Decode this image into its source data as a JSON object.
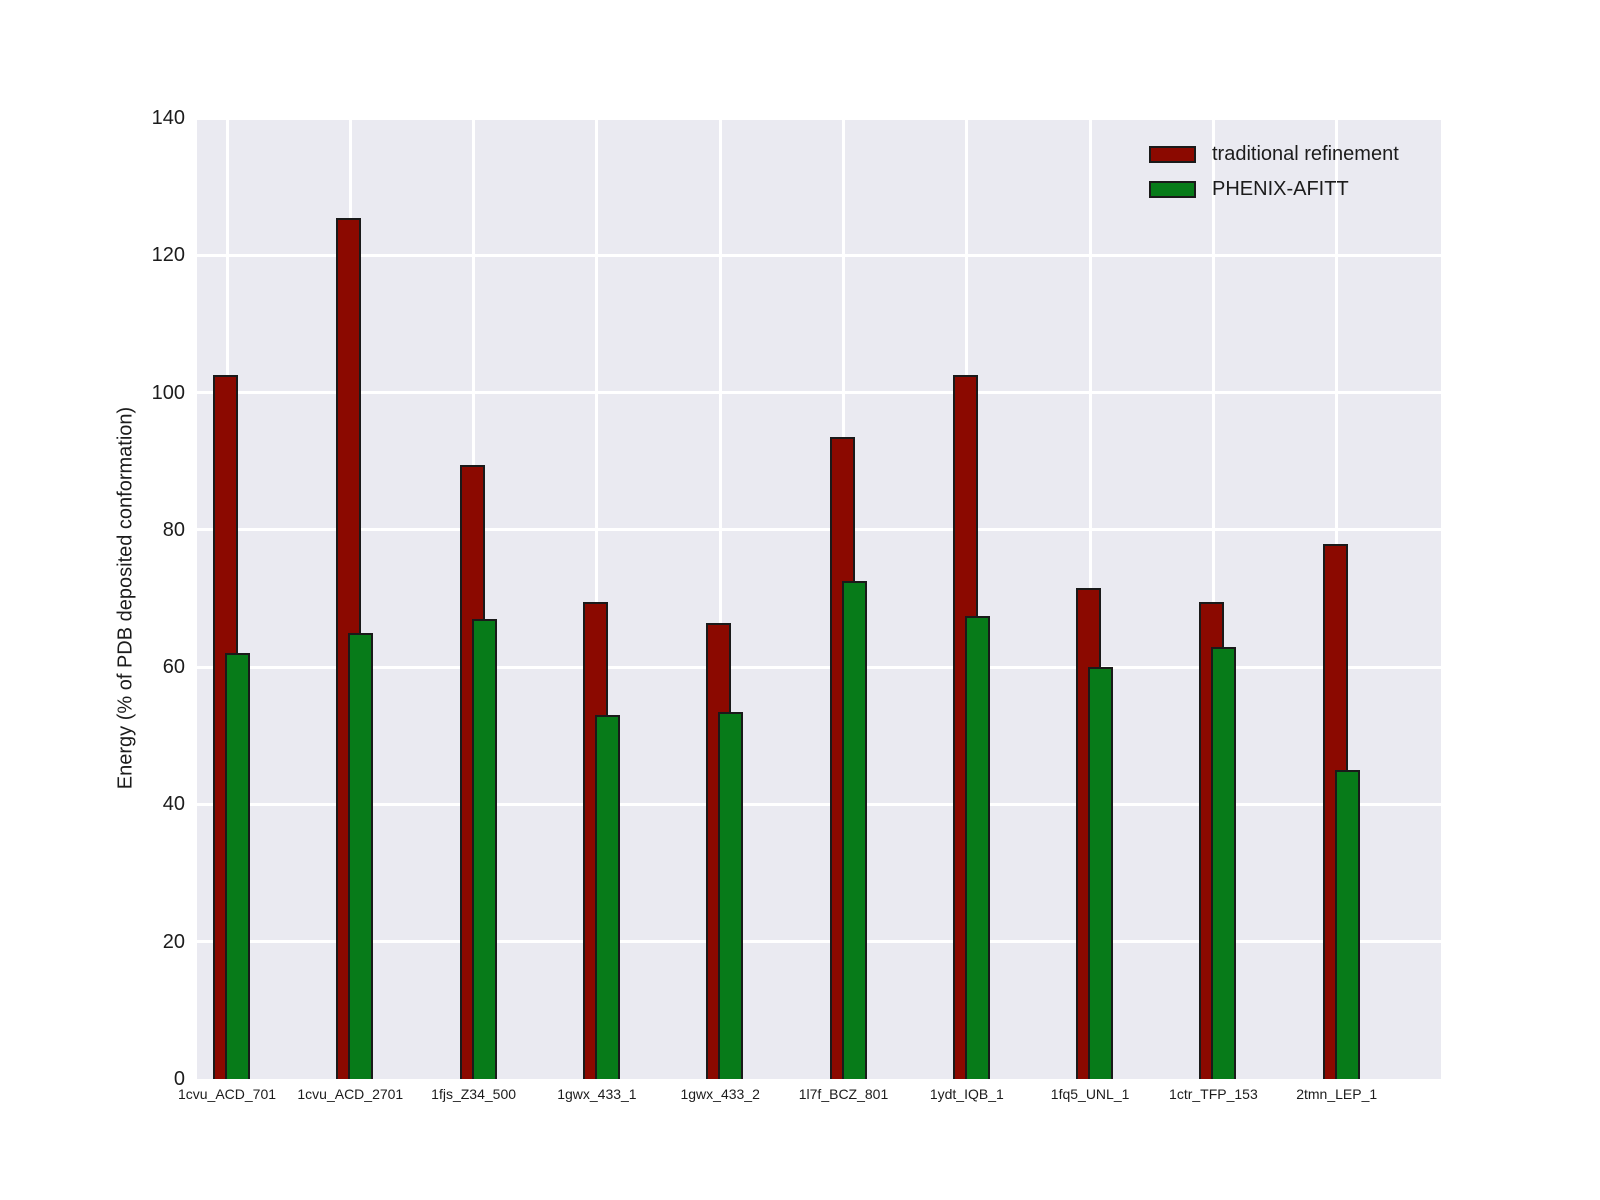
{
  "chart_data": {
    "type": "bar",
    "title": "",
    "xlabel": "",
    "ylabel": "Energy (% of PDB deposited conformation)",
    "ylim": [
      0,
      140
    ],
    "yticks": [
      0,
      20,
      40,
      60,
      80,
      100,
      120,
      140
    ],
    "grid": true,
    "legend_position": "upper right",
    "categories": [
      "1cvu_ACD_701",
      "1cvu_ACD_2701",
      "1fjs_Z34_500",
      "1gwx_433_1",
      "1gwx_433_2",
      "1l7f_BCZ_801",
      "1ydt_IQB_1",
      "1fq5_UNL_1",
      "1ctr_TFP_153",
      "2tmn_LEP_1"
    ],
    "series": [
      {
        "name": "traditional refinement",
        "color": "#8B0900",
        "values": [
          102.5,
          125.5,
          89.5,
          69.5,
          66.5,
          93.5,
          102.5,
          71.5,
          69.5,
          78
        ]
      },
      {
        "name": "PHENIX-AFITT",
        "color": "#077B19",
        "values": [
          62,
          65,
          67,
          53,
          53.5,
          72.5,
          67.5,
          60,
          63,
          45
        ]
      }
    ],
    "colors": {
      "plot_background": "#EAEAF1",
      "figure_background": "#FFFFFF",
      "gridline": "#FFFFFF",
      "bar_edge": "#1A1A1A",
      "text": "#1C1C1C"
    }
  }
}
